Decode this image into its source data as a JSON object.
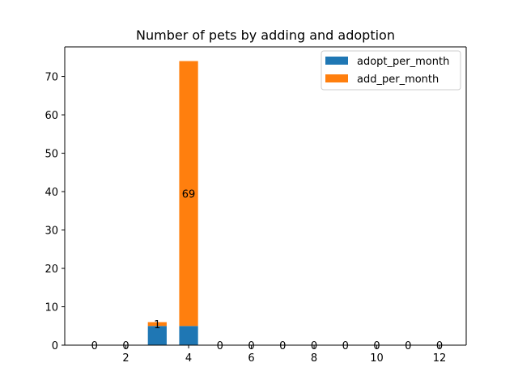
{
  "chart_data": {
    "type": "bar",
    "stacked": true,
    "title": "Number of pets by adding and adoption",
    "xlabel": "",
    "ylabel": "",
    "x": [
      1,
      2,
      3,
      4,
      5,
      6,
      7,
      8,
      9,
      10,
      11,
      12
    ],
    "series": [
      {
        "name": "adopt_per_month",
        "color": "#1f77b4",
        "values": [
          0,
          0,
          5,
          5,
          0,
          0,
          0,
          0,
          0,
          0,
          0,
          0
        ]
      },
      {
        "name": "add_per_month",
        "color": "#ff7f0e",
        "values": [
          0,
          0,
          1,
          69,
          0,
          0,
          0,
          0,
          0,
          0,
          0,
          0
        ]
      }
    ],
    "data_labels": [
      "0",
      "0",
      "1",
      "69",
      "0",
      "0",
      "0",
      "0",
      "0",
      "0",
      "0",
      "0"
    ],
    "xlim": [
      0.05,
      12.85
    ],
    "ylim": [
      0,
      77.7
    ],
    "xticks": [
      2,
      4,
      6,
      8,
      10,
      12
    ],
    "yticks": [
      0,
      10,
      20,
      30,
      40,
      50,
      60,
      70
    ],
    "grid": false,
    "legend_position": "top-right"
  }
}
